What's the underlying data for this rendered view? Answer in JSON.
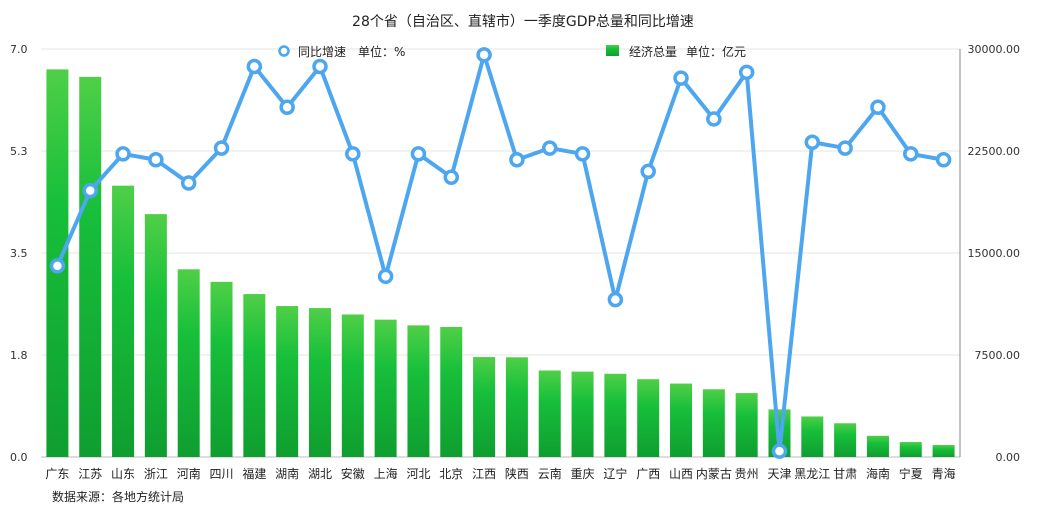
{
  "chart_data": {
    "type": "bar",
    "title": "28个省（自治区、直辖市）一季度GDP总量和同比增速",
    "categories": [
      "广东",
      "江苏",
      "山东",
      "浙江",
      "河南",
      "四川",
      "福建",
      "湖南",
      "湖北",
      "安徽",
      "上海",
      "河北",
      "北京",
      "江西",
      "陕西",
      "云南",
      "重庆",
      "辽宁",
      "广西",
      "山西",
      "内蒙古",
      "贵州",
      "天津",
      "黑龙江",
      "甘肃",
      "海南",
      "宁夏",
      "青海"
    ],
    "series": [
      {
        "name": "经济总量",
        "unit_label": "单位：亿元",
        "axis": "right",
        "type": "bar",
        "color": "#1db83a",
        "values": [
          28499,
          27950,
          19950,
          17860,
          13800,
          12880,
          11980,
          11100,
          10950,
          10480,
          10100,
          9680,
          9560,
          7350,
          7330,
          6360,
          6280,
          6120,
          5720,
          5400,
          4980,
          4700,
          3500,
          2980,
          2480,
          1560,
          1100,
          880
        ]
      },
      {
        "name": "同比增速",
        "unit_label": "单位：%",
        "axis": "left",
        "type": "line",
        "color": "#4da6f0",
        "values": [
          3.28,
          4.57,
          5.2,
          5.1,
          4.7,
          5.3,
          6.7,
          6.0,
          6.7,
          5.2,
          3.1,
          5.2,
          4.8,
          6.9,
          5.1,
          5.3,
          5.2,
          2.7,
          4.9,
          6.5,
          5.8,
          6.6,
          0.1,
          5.4,
          5.3,
          6.0,
          5.2,
          5.1
        ]
      }
    ],
    "left_axis": {
      "ticks": [
        "0.0",
        "1.8",
        "3.5",
        "5.3",
        "7.0"
      ],
      "range": [
        0,
        7.0
      ]
    },
    "right_axis": {
      "ticks": [
        "0.00",
        "7500.00",
        "15000.00",
        "22500.00",
        "30000.00"
      ],
      "range": [
        0,
        30000
      ]
    },
    "grid": true,
    "legend_position": "top"
  },
  "source_text": "数据来源：各地方统计局"
}
